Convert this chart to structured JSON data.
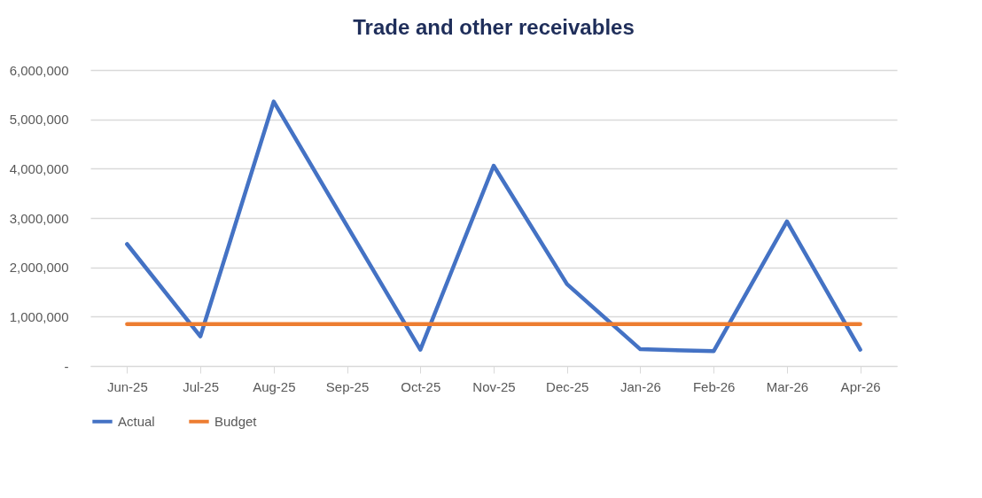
{
  "chart_data": {
    "type": "line",
    "title": "Trade and other receivables",
    "categories": [
      "Jun-25",
      "Jul-25",
      "Aug-25",
      "Sep-25",
      "Oct-25",
      "Nov-25",
      "Dec-25",
      "Jan-26",
      "Feb-26",
      "Mar-26",
      "Apr-26"
    ],
    "series": [
      {
        "name": "Actual",
        "color": "#4472c4",
        "values": [
          2470000,
          600000,
          5360000,
          2840000,
          330000,
          4060000,
          1660000,
          340000,
          300000,
          2930000,
          330000
        ]
      },
      {
        "name": "Budget",
        "color": "#ed7d31",
        "values": [
          850000,
          850000,
          850000,
          850000,
          850000,
          850000,
          850000,
          850000,
          850000,
          850000,
          850000
        ]
      }
    ],
    "ylim": [
      0,
      6000000
    ],
    "yticks": [
      {
        "value": 0,
        "label": "-"
      },
      {
        "value": 1000000,
        "label": "1,000,000"
      },
      {
        "value": 2000000,
        "label": "2,000,000"
      },
      {
        "value": 3000000,
        "label": "3,000,000"
      },
      {
        "value": 4000000,
        "label": "4,000,000"
      },
      {
        "value": 5000000,
        "label": "5,000,000"
      },
      {
        "value": 6000000,
        "label": "6,000,000"
      }
    ],
    "grid": "y",
    "legend": "bottom",
    "marker": "none",
    "line_style": "solid"
  }
}
